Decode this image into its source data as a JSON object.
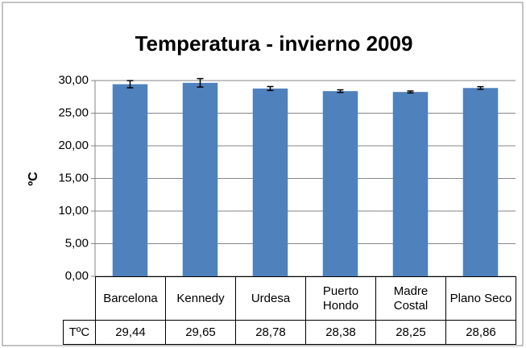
{
  "chart_data": {
    "type": "bar",
    "title": "Temperatura - invierno 2009",
    "y_label": "ºC",
    "categories": [
      "Barcelona",
      "Kennedy",
      "Urdesa",
      "Puerto Hondo",
      "Madre Costal",
      "Plano Seco"
    ],
    "series": [
      {
        "name": "TºC",
        "color": "#4f81bd",
        "values": [
          29.44,
          29.65,
          28.78,
          28.38,
          28.25,
          28.86
        ],
        "value_labels": [
          "29,44",
          "29,65",
          "28,78",
          "28,38",
          "28,25",
          "28,86"
        ],
        "errors": [
          0.55,
          0.65,
          0.3,
          0.2,
          0.15,
          0.2
        ]
      }
    ],
    "ylim": [
      0,
      30
    ],
    "yticks": [
      {
        "value": 0,
        "label": "0,00"
      },
      {
        "value": 5,
        "label": "5,00"
      },
      {
        "value": 10,
        "label": "10,00"
      },
      {
        "value": 15,
        "label": "15,00"
      },
      {
        "value": 20,
        "label": "20,00"
      },
      {
        "value": 25,
        "label": "25,00"
      },
      {
        "value": 30,
        "label": "30,00"
      }
    ],
    "grid": true
  }
}
